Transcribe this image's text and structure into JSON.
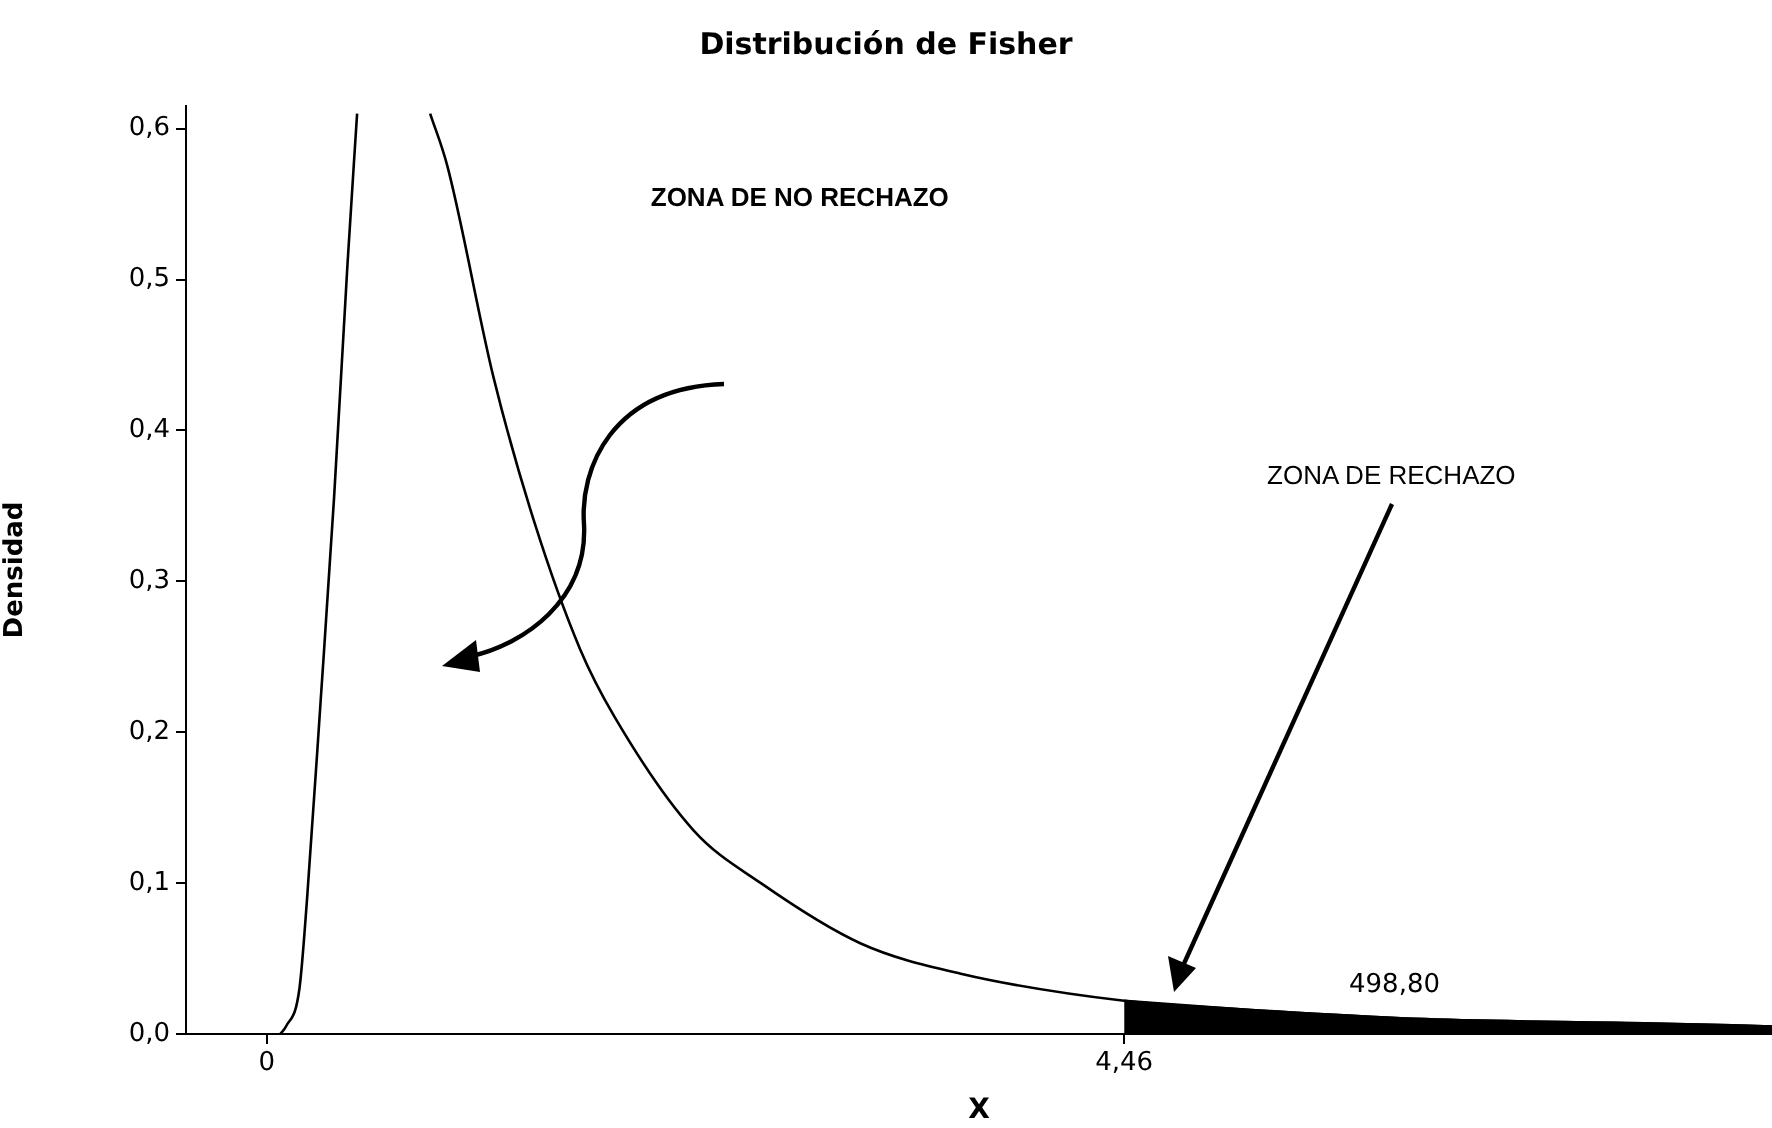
{
  "chart_data": {
    "type": "line",
    "title": "Distribución de Fisher",
    "xlabel": "X",
    "ylabel": "Densidad",
    "annotations": [
      "ZONA DE NO RECHAZO",
      "ZONA DE RECHAZO",
      "498,80"
    ],
    "xlim": [
      -0.42,
      7.83
    ],
    "ylim": [
      0,
      0.615
    ],
    "xticks": [
      0,
      {
        "value": 4.46,
        "label": "4,46"
      }
    ],
    "yticks": [
      {
        "value": 0,
        "label": "0,0"
      },
      {
        "value": 0.1,
        "label": "0,1"
      },
      {
        "value": 0.2,
        "label": "0,2"
      },
      {
        "value": 0.3,
        "label": "0,3"
      },
      {
        "value": 0.4,
        "label": "0,4"
      },
      {
        "value": 0.5,
        "label": "0,5"
      },
      {
        "value": 0.6,
        "label": "0,6"
      }
    ],
    "grid": false,
    "legend": false,
    "marker": "none",
    "line_style": "solid",
    "series": [
      {
        "type": "line",
        "color": "#000000",
        "x": [
          0.07,
          0.1,
          0.17,
          0.21,
          0.28,
          0.35,
          0.42,
          0.47,
          0.66,
          0.85,
          0.94,
          1.18,
          1.39,
          1.63,
          1.81,
          2.22,
          2.57,
          3.09,
          3.61,
          4.46,
          4.99,
          5.97,
          7.21,
          7.83
        ],
        "values": [
          0,
          0.005,
          0.03,
          0.09,
          0.22,
          0.355,
          0.51,
          0.61,
          null,
          0.61,
          0.575,
          0.435,
          0.34,
          0.255,
          0.21,
          0.135,
          0.1,
          0.06,
          0.04,
          0.022,
          0.017,
          0.01,
          0.007,
          0.005
        ]
      },
      {
        "type": "area",
        "color": "#000000",
        "x": [
          4.46,
          4.99,
          5.97,
          7.21,
          7.83
        ],
        "values": [
          0.022,
          0.017,
          0.01,
          0.007,
          0.005
        ]
      }
    ]
  }
}
